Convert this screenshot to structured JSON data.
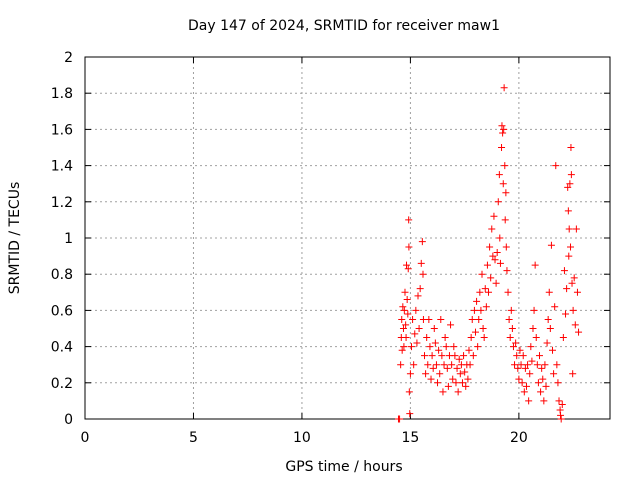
{
  "chart_data": {
    "type": "scatter",
    "title": "Day 147 of 2024, SRMTID for receiver maw1",
    "xlabel": "GPS time / hours",
    "ylabel": "SRMTID / TECUs",
    "xlim": [
      0,
      24.2
    ],
    "ylim": [
      0,
      2
    ],
    "xticks": [
      0,
      5,
      10,
      15,
      20
    ],
    "yticks": [
      0,
      0.2,
      0.4,
      0.6,
      0.8,
      1,
      1.2,
      1.4,
      1.6,
      1.8,
      2
    ],
    "xtick_labels": [
      "0",
      "5",
      "10",
      "15",
      "20"
    ],
    "ytick_labels": [
      "0",
      "0.2",
      "0.4",
      "0.6",
      "0.8",
      "1",
      "1.2",
      "1.4",
      "1.6",
      "1.8",
      "2"
    ],
    "grid": true,
    "marker": "+",
    "color": "#ff0000",
    "series": [
      {
        "name": "maw1",
        "points": [
          [
            14.45,
            0.0
          ],
          [
            14.5,
            0.0
          ],
          [
            14.55,
            0.3
          ],
          [
            14.58,
            0.45
          ],
          [
            14.6,
            0.55
          ],
          [
            14.62,
            0.38
          ],
          [
            14.65,
            0.62
          ],
          [
            14.68,
            0.5
          ],
          [
            14.7,
            0.4
          ],
          [
            14.72,
            0.6
          ],
          [
            14.75,
            0.7
          ],
          [
            14.78,
            0.52
          ],
          [
            14.8,
            0.45
          ],
          [
            14.82,
            0.85
          ],
          [
            14.85,
            0.66
          ],
          [
            14.88,
            0.58
          ],
          [
            14.9,
            0.83
          ],
          [
            14.92,
            1.1
          ],
          [
            14.93,
            0.95
          ],
          [
            14.95,
            0.15
          ],
          [
            14.97,
            0.03
          ],
          [
            15.0,
            0.25
          ],
          [
            15.05,
            0.4
          ],
          [
            15.1,
            0.55
          ],
          [
            15.15,
            0.3
          ],
          [
            15.2,
            0.47
          ],
          [
            15.25,
            0.6
          ],
          [
            15.3,
            0.42
          ],
          [
            15.35,
            0.68
          ],
          [
            15.4,
            0.5
          ],
          [
            15.45,
            0.72
          ],
          [
            15.5,
            0.86
          ],
          [
            15.55,
            0.98
          ],
          [
            15.58,
            0.8
          ],
          [
            15.6,
            0.55
          ],
          [
            15.65,
            0.35
          ],
          [
            15.7,
            0.25
          ],
          [
            15.75,
            0.45
          ],
          [
            15.8,
            0.3
          ],
          [
            15.85,
            0.55
          ],
          [
            15.9,
            0.4
          ],
          [
            15.95,
            0.22
          ],
          [
            16.0,
            0.35
          ],
          [
            16.05,
            0.28
          ],
          [
            16.1,
            0.5
          ],
          [
            16.15,
            0.42
          ],
          [
            16.2,
            0.3
          ],
          [
            16.25,
            0.2
          ],
          [
            16.3,
            0.38
          ],
          [
            16.35,
            0.25
          ],
          [
            16.4,
            0.55
          ],
          [
            16.45,
            0.35
          ],
          [
            16.5,
            0.15
          ],
          [
            16.55,
            0.3
          ],
          [
            16.6,
            0.45
          ],
          [
            16.65,
            0.4
          ],
          [
            16.7,
            0.28
          ],
          [
            16.75,
            0.18
          ],
          [
            16.8,
            0.35
          ],
          [
            16.85,
            0.52
          ],
          [
            16.9,
            0.3
          ],
          [
            16.95,
            0.22
          ],
          [
            17.0,
            0.4
          ],
          [
            17.05,
            0.35
          ],
          [
            17.1,
            0.2
          ],
          [
            17.15,
            0.28
          ],
          [
            17.2,
            0.15
          ],
          [
            17.25,
            0.33
          ],
          [
            17.3,
            0.25
          ],
          [
            17.35,
            0.3
          ],
          [
            17.4,
            0.2
          ],
          [
            17.45,
            0.35
          ],
          [
            17.5,
            0.26
          ],
          [
            17.55,
            0.18
          ],
          [
            17.6,
            0.3
          ],
          [
            17.65,
            0.22
          ],
          [
            17.7,
            0.38
          ],
          [
            17.75,
            0.3
          ],
          [
            17.8,
            0.45
          ],
          [
            17.85,
            0.55
          ],
          [
            17.9,
            0.35
          ],
          [
            17.95,
            0.6
          ],
          [
            18.0,
            0.48
          ],
          [
            18.05,
            0.65
          ],
          [
            18.1,
            0.4
          ],
          [
            18.15,
            0.55
          ],
          [
            18.2,
            0.7
          ],
          [
            18.25,
            0.6
          ],
          [
            18.3,
            0.8
          ],
          [
            18.35,
            0.5
          ],
          [
            18.4,
            0.45
          ],
          [
            18.45,
            0.72
          ],
          [
            18.5,
            0.62
          ],
          [
            18.55,
            0.85
          ],
          [
            18.6,
            0.7
          ],
          [
            18.65,
            0.95
          ],
          [
            18.7,
            0.78
          ],
          [
            18.75,
            1.05
          ],
          [
            18.8,
            0.9
          ],
          [
            18.85,
            1.12
          ],
          [
            18.9,
            0.88
          ],
          [
            18.95,
            0.75
          ],
          [
            19.0,
            0.92
          ],
          [
            19.05,
            1.2
          ],
          [
            19.1,
            1.35
          ],
          [
            19.12,
            1.0
          ],
          [
            19.15,
            0.86
          ],
          [
            19.2,
            1.5
          ],
          [
            19.22,
            1.62
          ],
          [
            19.25,
            1.58
          ],
          [
            19.28,
            1.3
          ],
          [
            19.3,
            1.6
          ],
          [
            19.32,
            1.83
          ],
          [
            19.35,
            1.4
          ],
          [
            19.37,
            1.1
          ],
          [
            19.4,
            1.25
          ],
          [
            19.42,
            0.95
          ],
          [
            19.45,
            0.82
          ],
          [
            19.5,
            0.7
          ],
          [
            19.55,
            0.55
          ],
          [
            19.6,
            0.45
          ],
          [
            19.65,
            0.6
          ],
          [
            19.7,
            0.5
          ],
          [
            19.75,
            0.4
          ],
          [
            19.8,
            0.3
          ],
          [
            19.85,
            0.42
          ],
          [
            19.9,
            0.35
          ],
          [
            19.95,
            0.28
          ],
          [
            20.0,
            0.22
          ],
          [
            20.05,
            0.38
          ],
          [
            20.1,
            0.3
          ],
          [
            20.15,
            0.2
          ],
          [
            20.2,
            0.35
          ],
          [
            20.25,
            0.15
          ],
          [
            20.3,
            0.28
          ],
          [
            20.35,
            0.18
          ],
          [
            20.4,
            0.3
          ],
          [
            20.45,
            0.1
          ],
          [
            20.5,
            0.25
          ],
          [
            20.55,
            0.4
          ],
          [
            20.6,
            0.32
          ],
          [
            20.65,
            0.5
          ],
          [
            20.7,
            0.6
          ],
          [
            20.75,
            0.85
          ],
          [
            20.8,
            0.45
          ],
          [
            20.85,
            0.3
          ],
          [
            20.9,
            0.2
          ],
          [
            20.95,
            0.35
          ],
          [
            21.0,
            0.15
          ],
          [
            21.05,
            0.28
          ],
          [
            21.1,
            0.22
          ],
          [
            21.15,
            0.1
          ],
          [
            21.2,
            0.3
          ],
          [
            21.25,
            0.18
          ],
          [
            21.3,
            0.42
          ],
          [
            21.35,
            0.55
          ],
          [
            21.4,
            0.7
          ],
          [
            21.45,
            0.5
          ],
          [
            21.5,
            0.96
          ],
          [
            21.55,
            0.38
          ],
          [
            21.6,
            0.25
          ],
          [
            21.65,
            0.62
          ],
          [
            21.7,
            1.4
          ],
          [
            21.75,
            0.3
          ],
          [
            21.8,
            0.2
          ],
          [
            21.85,
            0.1
          ],
          [
            21.9,
            0.05
          ],
          [
            21.92,
            0.02
          ],
          [
            21.95,
            0.0
          ],
          [
            22.0,
            0.08
          ],
          [
            22.05,
            0.45
          ],
          [
            22.1,
            0.82
          ],
          [
            22.15,
            0.58
          ],
          [
            22.2,
            0.72
          ],
          [
            22.25,
            1.28
          ],
          [
            22.28,
            1.15
          ],
          [
            22.3,
            0.9
          ],
          [
            22.32,
            1.05
          ],
          [
            22.35,
            1.3
          ],
          [
            22.38,
            0.95
          ],
          [
            22.4,
            1.5
          ],
          [
            22.42,
            1.35
          ],
          [
            22.45,
            0.75
          ],
          [
            22.48,
            0.25
          ],
          [
            22.5,
            0.6
          ],
          [
            22.55,
            0.78
          ],
          [
            22.6,
            0.52
          ],
          [
            22.65,
            1.05
          ],
          [
            22.7,
            0.7
          ],
          [
            22.75,
            0.48
          ]
        ]
      }
    ]
  }
}
